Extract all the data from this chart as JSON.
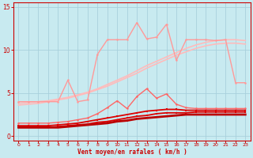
{
  "bg_color": "#c8eaf0",
  "grid_color": "#a8d0dc",
  "xlabel": "Vent moyen/en rafales ( km/h )",
  "xlabel_color": "#cc0000",
  "tick_color": "#cc0000",
  "xlim": [
    -0.5,
    23.5
  ],
  "ylim": [
    -0.5,
    15.5
  ],
  "yticks": [
    0,
    5,
    10,
    15
  ],
  "xticks": [
    0,
    1,
    2,
    3,
    4,
    5,
    6,
    7,
    8,
    9,
    10,
    11,
    12,
    13,
    14,
    15,
    16,
    17,
    18,
    19,
    20,
    21,
    22,
    23
  ],
  "line_upper1": {
    "x": [
      0,
      1,
      2,
      3,
      4,
      5,
      6,
      7,
      8,
      9,
      10,
      11,
      12,
      13,
      14,
      15,
      16,
      17,
      18,
      19,
      20,
      21,
      22,
      23
    ],
    "y": [
      3.8,
      3.9,
      4.0,
      4.1,
      4.3,
      4.5,
      4.8,
      5.1,
      5.5,
      6.0,
      6.5,
      7.0,
      7.6,
      8.2,
      8.7,
      9.2,
      9.7,
      10.2,
      10.6,
      10.9,
      11.1,
      11.2,
      11.2,
      11.1
    ],
    "color": "#ffbbbb",
    "lw": 1.2
  },
  "line_upper2": {
    "x": [
      0,
      1,
      2,
      3,
      4,
      5,
      6,
      7,
      8,
      9,
      10,
      11,
      12,
      13,
      14,
      15,
      16,
      17,
      18,
      19,
      20,
      21,
      22,
      23
    ],
    "y": [
      3.6,
      3.7,
      3.8,
      4.0,
      4.2,
      4.4,
      4.7,
      5.0,
      5.4,
      5.8,
      6.3,
      6.8,
      7.3,
      7.9,
      8.4,
      8.9,
      9.4,
      9.8,
      10.2,
      10.5,
      10.7,
      10.8,
      10.8,
      10.7
    ],
    "color": "#ffbbbb",
    "lw": 1.2
  },
  "line_jagged_high": {
    "x": [
      0,
      1,
      2,
      3,
      4,
      5,
      6,
      7,
      8,
      9,
      10,
      11,
      12,
      13,
      14,
      15,
      16,
      17,
      18,
      19,
      20,
      21,
      22,
      23
    ],
    "y": [
      4.0,
      4.0,
      4.0,
      4.0,
      4.0,
      6.5,
      4.0,
      4.2,
      9.5,
      11.2,
      11.2,
      11.2,
      13.2,
      11.3,
      11.5,
      13.0,
      8.8,
      11.2,
      11.2,
      11.2,
      11.1,
      11.2,
      6.2,
      6.2
    ],
    "color": "#ff9999",
    "lw": 1.0,
    "marker": "o",
    "ms": 1.8
  },
  "line_med": {
    "x": [
      0,
      1,
      2,
      3,
      4,
      5,
      6,
      7,
      8,
      9,
      10,
      11,
      12,
      13,
      14,
      15,
      16,
      17,
      18,
      19,
      20,
      21,
      22,
      23
    ],
    "y": [
      1.5,
      1.5,
      1.5,
      1.5,
      1.6,
      1.7,
      1.9,
      2.1,
      2.6,
      3.3,
      4.1,
      3.2,
      4.6,
      5.5,
      4.4,
      4.9,
      3.7,
      3.3,
      3.2,
      3.2,
      3.2,
      3.2,
      3.2,
      3.2
    ],
    "color": "#ff6666",
    "lw": 1.0,
    "marker": "o",
    "ms": 1.8
  },
  "line_dark1": {
    "x": [
      0,
      1,
      2,
      3,
      4,
      5,
      6,
      7,
      8,
      9,
      10,
      11,
      12,
      13,
      14,
      15,
      16,
      17,
      18,
      19,
      20,
      21,
      22,
      23
    ],
    "y": [
      1.2,
      1.2,
      1.2,
      1.2,
      1.3,
      1.4,
      1.5,
      1.7,
      1.9,
      2.1,
      2.3,
      2.5,
      2.7,
      2.9,
      3.0,
      3.1,
      3.1,
      3.0,
      3.0,
      3.0,
      3.0,
      3.0,
      3.0,
      3.0
    ],
    "color": "#dd0000",
    "lw": 1.3,
    "marker": "s",
    "ms": 1.8
  },
  "line_dark2": {
    "x": [
      0,
      1,
      2,
      3,
      4,
      5,
      6,
      7,
      8,
      9,
      10,
      11,
      12,
      13,
      14,
      15,
      16,
      17,
      18,
      19,
      20,
      21,
      22,
      23
    ],
    "y": [
      1.0,
      1.0,
      1.0,
      1.0,
      1.1,
      1.2,
      1.3,
      1.4,
      1.6,
      1.7,
      1.9,
      2.1,
      2.3,
      2.4,
      2.6,
      2.7,
      2.7,
      2.7,
      2.8,
      2.8,
      2.8,
      2.8,
      2.8,
      2.8
    ],
    "color": "#dd0000",
    "lw": 1.3,
    "marker": "s",
    "ms": 1.8
  },
  "line_dark3": {
    "x": [
      0,
      1,
      2,
      3,
      4,
      5,
      6,
      7,
      8,
      9,
      10,
      11,
      12,
      13,
      14,
      15,
      16,
      17,
      18,
      19,
      20,
      21,
      22,
      23
    ],
    "y": [
      1.0,
      1.0,
      1.0,
      1.0,
      1.0,
      1.1,
      1.2,
      1.3,
      1.4,
      1.5,
      1.7,
      1.8,
      2.0,
      2.1,
      2.2,
      2.3,
      2.4,
      2.5,
      2.5,
      2.5,
      2.5,
      2.5,
      2.5,
      2.5
    ],
    "color": "#bb0000",
    "lw": 2.0,
    "marker": "s",
    "ms": 1.8
  }
}
